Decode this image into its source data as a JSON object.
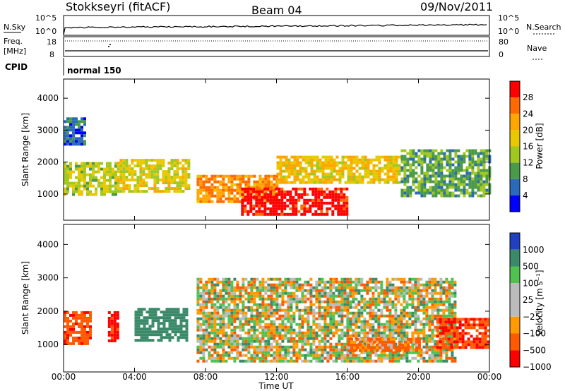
{
  "header": {
    "station": "Stokkseyri (fitACF)",
    "beam": "Beam 04",
    "date": "09/Nov/2011"
  },
  "panel_labels": {
    "nsky": "N.Sky",
    "nsearch": "N.Search",
    "freq": "Freq.",
    "freq_unit": "[MHz]",
    "cpid": "CPID",
    "nave": "Nave",
    "mode": "normal 150",
    "nsky_ticks": [
      "10^5",
      "10^0"
    ],
    "nsearch_ticks": [
      "10^5",
      "10^0"
    ],
    "freq_ticks": [
      "18",
      "8"
    ],
    "nave_ticks": [
      "80",
      "0"
    ]
  },
  "axes": {
    "ylabel": "Slant Range [km]",
    "yticks": [
      "4000",
      "3000",
      "2000",
      "1000"
    ],
    "xlabel": "Time UT",
    "xticks": [
      "00:00",
      "04:00",
      "08:00",
      "12:00",
      "16:00",
      "20:00",
      "00:00"
    ]
  },
  "power_scale": {
    "label": "Power [dB]",
    "ticks": [
      "28",
      "24",
      "20",
      "16",
      "12",
      "8",
      "4"
    ],
    "colors": [
      "#ff0000",
      "#ff6a00",
      "#ffa500",
      "#e8c800",
      "#a0c820",
      "#4a9a4a",
      "#2a6ab8",
      "#0000ff"
    ]
  },
  "velocity_scale": {
    "label": "Velocity [m s⁻¹]",
    "ticks": [
      "1000",
      "500",
      "100",
      "25",
      "−25",
      "−100",
      "−500",
      "−1000"
    ],
    "colors": [
      "#2040c0",
      "#3a8a6a",
      "#50c050",
      "#bbbbbb",
      "#bbbbbb",
      "#ff9a00",
      "#ff5a00",
      "#ff0000"
    ]
  },
  "chart_data": {
    "type": "heatmap",
    "title": "Stokkseyri (fitACF) Beam 04 09/Nov/2011",
    "xlabel": "Time UT",
    "ylabel": "Slant Range [km]",
    "x_range_hours": [
      0,
      24
    ],
    "y_range_km": [
      180,
      4600
    ],
    "panels": [
      {
        "name": "Power [dB]",
        "color_range": [
          0,
          30
        ],
        "regions": [
          {
            "t": [
              0.0,
              1.2
            ],
            "r": [
              2600,
              3400
            ],
            "value": 6
          },
          {
            "t": [
              0.0,
              3.0
            ],
            "r": [
              1000,
              2000
            ],
            "value": 14
          },
          {
            "t": [
              3.0,
              7.0
            ],
            "r": [
              1100,
              2100
            ],
            "value": 16
          },
          {
            "t": [
              7.5,
              12.0
            ],
            "r": [
              800,
              1600
            ],
            "value": 22
          },
          {
            "t": [
              10.0,
              16.0
            ],
            "r": [
              400,
              1200
            ],
            "value": 29
          },
          {
            "t": [
              12.0,
              19.0
            ],
            "r": [
              1400,
              2200
            ],
            "value": 18
          },
          {
            "t": [
              19.0,
              24.0
            ],
            "r": [
              900,
              2400
            ],
            "value": 10
          }
        ]
      },
      {
        "name": "Velocity [m s⁻¹]",
        "color_range": [
          -1000,
          1000
        ],
        "regions": [
          {
            "t": [
              0.0,
              1.5
            ],
            "r": [
              1000,
              2000
            ],
            "value": -400
          },
          {
            "t": [
              2.5,
              3.0
            ],
            "r": [
              1100,
              2000
            ],
            "value": -600
          },
          {
            "t": [
              4.0,
              7.0
            ],
            "r": [
              1100,
              2100
            ],
            "value": 300
          },
          {
            "t": [
              7.5,
              22.0
            ],
            "r": [
              500,
              3000
            ],
            "value": 0
          },
          {
            "t": [
              16.0,
              20.0
            ],
            "r": [
              800,
              1200
            ],
            "value": -150
          },
          {
            "t": [
              21.0,
              24.0
            ],
            "r": [
              900,
              1800
            ],
            "value": -500
          }
        ]
      }
    ]
  }
}
